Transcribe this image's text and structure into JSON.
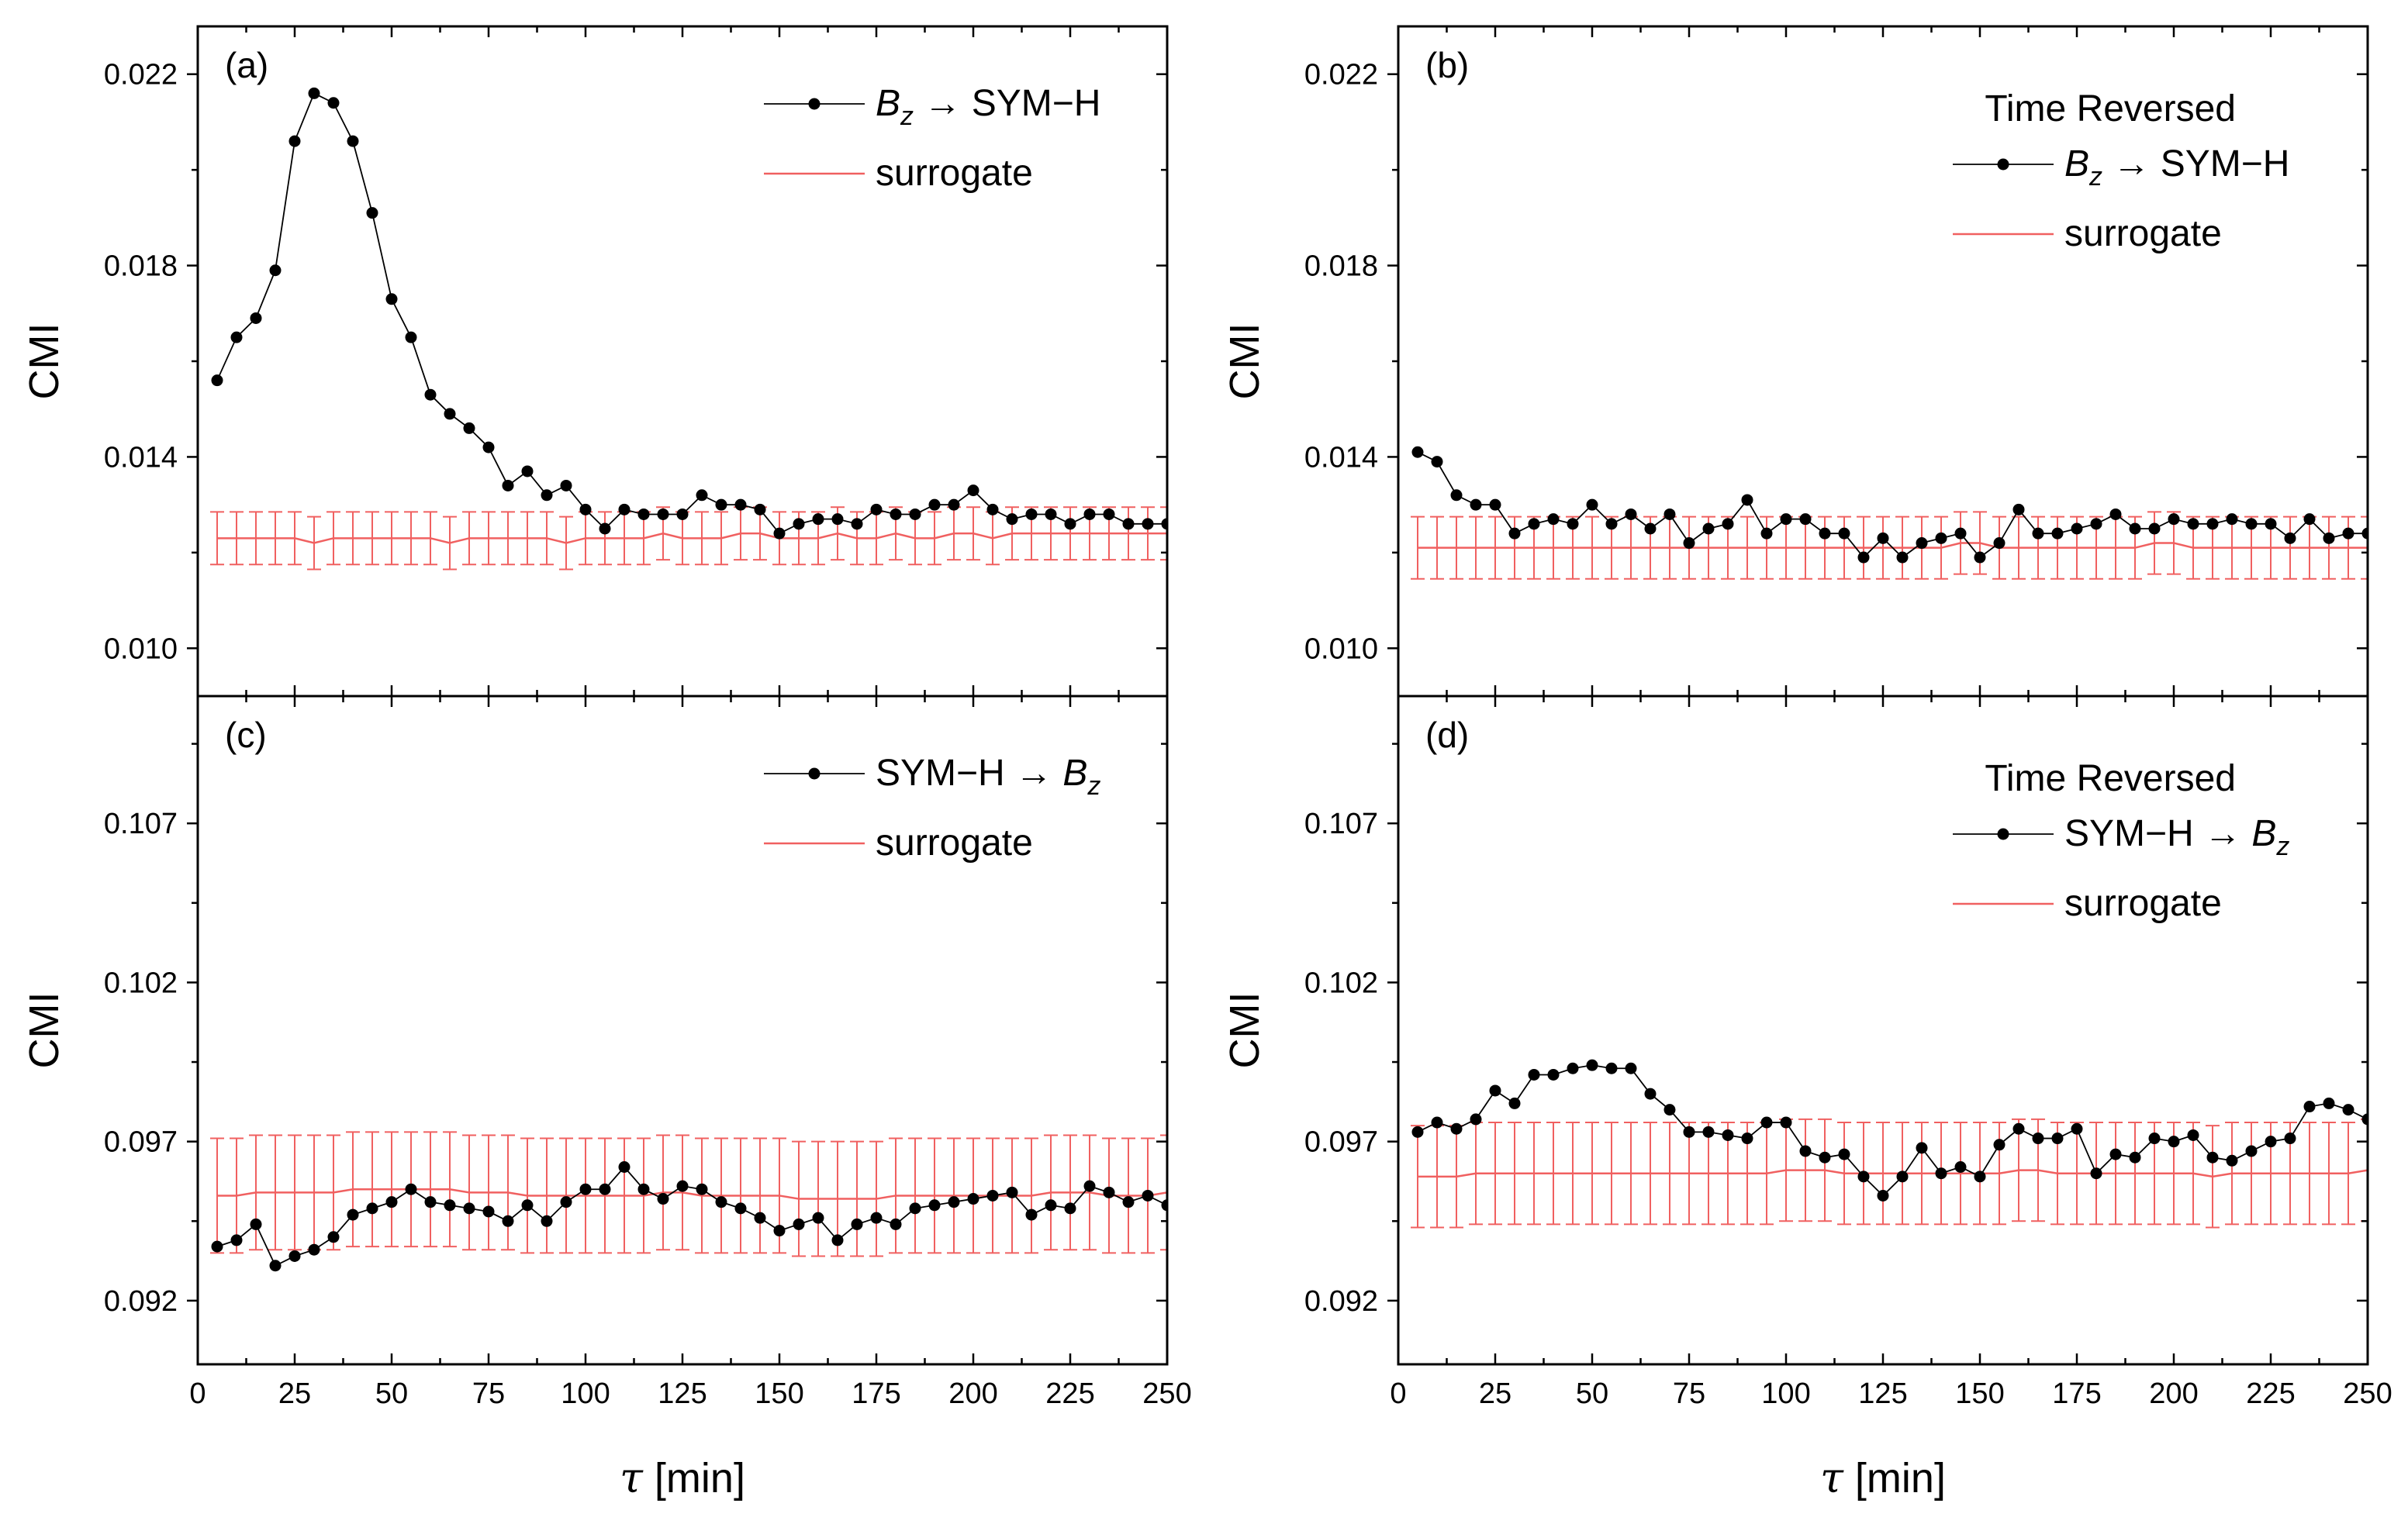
{
  "chart_data": [
    {
      "type": "line",
      "panel_label": "(a)",
      "ylabel": "CMI",
      "xlabel": "τ [min]",
      "xlim": [
        0,
        250
      ],
      "ylim": [
        0.009,
        0.023
      ],
      "x_ticks": [
        "0",
        "25",
        "50",
        "75",
        "100",
        "125",
        "150",
        "175",
        "200",
        "225",
        "250"
      ],
      "y_ticks": [
        "0.010",
        "0.014",
        "0.018",
        "0.022"
      ],
      "legend": {
        "title": "",
        "entries": [
          "B_z → SYM−H",
          "surrogate"
        ],
        "position": "top-right"
      },
      "series": [
        {
          "name": "B_z → SYM−H",
          "color": "#000000",
          "marker": "circle",
          "x": [
            5,
            10,
            15,
            20,
            25,
            30,
            35,
            40,
            45,
            50,
            55,
            60,
            65,
            70,
            75,
            80,
            85,
            90,
            95,
            100,
            105,
            110,
            115,
            120,
            125,
            130,
            135,
            140,
            145,
            150,
            155,
            160,
            165,
            170,
            175,
            180,
            185,
            190,
            195,
            200,
            205,
            210,
            215,
            220,
            225,
            230,
            235,
            240,
            245,
            250
          ],
          "y": [
            0.0156,
            0.0165,
            0.0169,
            0.0179,
            0.0206,
            0.0216,
            0.0214,
            0.0206,
            0.0191,
            0.0173,
            0.0165,
            0.0153,
            0.0149,
            0.0146,
            0.0142,
            0.0134,
            0.0137,
            0.0132,
            0.0134,
            0.0129,
            0.0125,
            0.0129,
            0.0128,
            0.0128,
            0.0128,
            0.0132,
            0.013,
            0.013,
            0.0129,
            0.0124,
            0.0126,
            0.0127,
            0.0127,
            0.0126,
            0.0129,
            0.0128,
            0.0128,
            0.013,
            0.013,
            0.0133,
            0.0129,
            0.0127,
            0.0128,
            0.0128,
            0.0126,
            0.0128,
            0.0128,
            0.0126,
            0.0126,
            0.0126
          ]
        },
        {
          "name": "surrogate",
          "color": "#f06060",
          "marker": "none",
          "x": [
            5,
            10,
            15,
            20,
            25,
            30,
            35,
            40,
            45,
            50,
            55,
            60,
            65,
            70,
            75,
            80,
            85,
            90,
            95,
            100,
            105,
            110,
            115,
            120,
            125,
            130,
            135,
            140,
            145,
            150,
            155,
            160,
            165,
            170,
            175,
            180,
            185,
            190,
            195,
            200,
            205,
            210,
            215,
            220,
            225,
            230,
            235,
            240,
            245,
            250
          ],
          "y": [
            0.0123,
            0.0123,
            0.0123,
            0.0123,
            0.0123,
            0.0122,
            0.0123,
            0.0123,
            0.0123,
            0.0123,
            0.0123,
            0.0123,
            0.0122,
            0.0123,
            0.0123,
            0.0123,
            0.0123,
            0.0123,
            0.0122,
            0.0123,
            0.0123,
            0.0123,
            0.0123,
            0.0124,
            0.0123,
            0.0123,
            0.0123,
            0.0124,
            0.0124,
            0.0123,
            0.0123,
            0.0123,
            0.0124,
            0.0123,
            0.0123,
            0.0124,
            0.0123,
            0.0123,
            0.0124,
            0.0124,
            0.0123,
            0.0124,
            0.0124,
            0.0124,
            0.0124,
            0.0124,
            0.0124,
            0.0124,
            0.0124,
            0.0124
          ],
          "error": 0.00055
        }
      ]
    },
    {
      "type": "line",
      "panel_label": "(b)",
      "ylabel": "CMI",
      "xlabel": "τ [min]",
      "xlim": [
        0,
        250
      ],
      "ylim": [
        0.009,
        0.023
      ],
      "x_ticks": [
        "0",
        "25",
        "50",
        "75",
        "100",
        "125",
        "150",
        "175",
        "200",
        "225",
        "250"
      ],
      "y_ticks": [
        "0.010",
        "0.014",
        "0.018",
        "0.022"
      ],
      "legend": {
        "title": "Time Reversed",
        "entries": [
          "B_z → SYM−H",
          "surrogate"
        ],
        "position": "top-right"
      },
      "series": [
        {
          "name": "B_z → SYM−H",
          "color": "#000000",
          "marker": "circle",
          "x": [
            5,
            10,
            15,
            20,
            25,
            30,
            35,
            40,
            45,
            50,
            55,
            60,
            65,
            70,
            75,
            80,
            85,
            90,
            95,
            100,
            105,
            110,
            115,
            120,
            125,
            130,
            135,
            140,
            145,
            150,
            155,
            160,
            165,
            170,
            175,
            180,
            185,
            190,
            195,
            200,
            205,
            210,
            215,
            220,
            225,
            230,
            235,
            240,
            245,
            250
          ],
          "y": [
            0.0141,
            0.0139,
            0.0132,
            0.013,
            0.013,
            0.0124,
            0.0126,
            0.0127,
            0.0126,
            0.013,
            0.0126,
            0.0128,
            0.0125,
            0.0128,
            0.0122,
            0.0125,
            0.0126,
            0.0131,
            0.0124,
            0.0127,
            0.0127,
            0.0124,
            0.0124,
            0.0119,
            0.0123,
            0.0119,
            0.0122,
            0.0123,
            0.0124,
            0.0119,
            0.0122,
            0.0129,
            0.0124,
            0.0124,
            0.0125,
            0.0126,
            0.0128,
            0.0125,
            0.0125,
            0.0127,
            0.0126,
            0.0126,
            0.0127,
            0.0126,
            0.0126,
            0.0123,
            0.0127,
            0.0123,
            0.0124,
            0.0124
          ],
          "y_hidden": false
        },
        {
          "name": "surrogate",
          "color": "#f06060",
          "marker": "none",
          "x": [
            5,
            10,
            15,
            20,
            25,
            30,
            35,
            40,
            45,
            50,
            55,
            60,
            65,
            70,
            75,
            80,
            85,
            90,
            95,
            100,
            105,
            110,
            115,
            120,
            125,
            130,
            135,
            140,
            145,
            150,
            155,
            160,
            165,
            170,
            175,
            180,
            185,
            190,
            195,
            200,
            205,
            210,
            215,
            220,
            225,
            230,
            235,
            240,
            245,
            250
          ],
          "y": [
            0.0121,
            0.0121,
            0.0121,
            0.0121,
            0.0121,
            0.0121,
            0.0121,
            0.0121,
            0.0121,
            0.0121,
            0.0121,
            0.0121,
            0.0121,
            0.0121,
            0.0121,
            0.0121,
            0.0121,
            0.0121,
            0.0121,
            0.0121,
            0.0121,
            0.0121,
            0.0121,
            0.0121,
            0.0121,
            0.0121,
            0.0121,
            0.0121,
            0.0122,
            0.0122,
            0.0121,
            0.0121,
            0.0121,
            0.0121,
            0.0121,
            0.0121,
            0.0121,
            0.0121,
            0.0122,
            0.0122,
            0.0121,
            0.0121,
            0.0121,
            0.0121,
            0.0121,
            0.0121,
            0.0121,
            0.0121,
            0.0121,
            0.0121
          ],
          "error": 0.00065
        }
      ]
    },
    {
      "type": "line",
      "panel_label": "(c)",
      "ylabel": "CMI",
      "xlabel": "τ [min]",
      "xlim": [
        0,
        250
      ],
      "ylim": [
        0.09,
        0.111
      ],
      "x_ticks": [
        "0",
        "25",
        "50",
        "75",
        "100",
        "125",
        "150",
        "175",
        "200",
        "225",
        "250"
      ],
      "y_ticks": [
        "0.092",
        "0.097",
        "0.102",
        "0.107"
      ],
      "legend": {
        "title": "",
        "entries": [
          "SYM−H → B_z",
          "surrogate"
        ],
        "position": "top-right"
      },
      "series": [
        {
          "name": "SYM−H → B_z",
          "color": "#000000",
          "marker": "circle",
          "x": [
            5,
            10,
            15,
            20,
            25,
            30,
            35,
            40,
            45,
            50,
            55,
            60,
            65,
            70,
            75,
            80,
            85,
            90,
            95,
            100,
            105,
            110,
            115,
            120,
            125,
            130,
            135,
            140,
            145,
            150,
            155,
            160,
            165,
            170,
            175,
            180,
            185,
            190,
            195,
            200,
            205,
            210,
            215,
            220,
            225,
            230,
            235,
            240,
            245,
            250
          ],
          "y": [
            0.0937,
            0.0939,
            0.0944,
            0.0931,
            0.0934,
            0.0936,
            0.094,
            0.0947,
            0.0949,
            0.0951,
            0.0955,
            0.0951,
            0.095,
            0.0949,
            0.0948,
            0.0945,
            0.095,
            0.0945,
            0.0951,
            0.0955,
            0.0955,
            0.0962,
            0.0955,
            0.0952,
            0.0956,
            0.0955,
            0.0951,
            0.0949,
            0.0946,
            0.0942,
            0.0944,
            0.0946,
            0.0939,
            0.0944,
            0.0946,
            0.0944,
            0.0949,
            0.095,
            0.0951,
            0.0952,
            0.0953,
            0.0954,
            0.0947,
            0.095,
            0.0949,
            0.0956,
            0.0954,
            0.0951,
            0.0953,
            0.095
          ]
        },
        {
          "name": "surrogate",
          "color": "#f06060",
          "marker": "none",
          "x": [
            5,
            10,
            15,
            20,
            25,
            30,
            35,
            40,
            45,
            50,
            55,
            60,
            65,
            70,
            75,
            80,
            85,
            90,
            95,
            100,
            105,
            110,
            115,
            120,
            125,
            130,
            135,
            140,
            145,
            150,
            155,
            160,
            165,
            170,
            175,
            180,
            185,
            190,
            195,
            200,
            205,
            210,
            215,
            220,
            225,
            230,
            235,
            240,
            245,
            250
          ],
          "y": [
            0.0953,
            0.0953,
            0.0954,
            0.0954,
            0.0954,
            0.0954,
            0.0954,
            0.0955,
            0.0955,
            0.0955,
            0.0955,
            0.0955,
            0.0955,
            0.0954,
            0.0954,
            0.0954,
            0.0953,
            0.0953,
            0.0953,
            0.0953,
            0.0953,
            0.0953,
            0.0953,
            0.0954,
            0.0954,
            0.0953,
            0.0953,
            0.0953,
            0.0953,
            0.0953,
            0.0952,
            0.0952,
            0.0952,
            0.0952,
            0.0952,
            0.0953,
            0.0953,
            0.0953,
            0.0953,
            0.0953,
            0.0953,
            0.0953,
            0.0953,
            0.0954,
            0.0954,
            0.0954,
            0.0953,
            0.0953,
            0.0953,
            0.0954
          ],
          "error": 0.0018
        }
      ]
    },
    {
      "type": "line",
      "panel_label": "(d)",
      "ylabel": "CMI",
      "xlabel": "τ [min]",
      "xlim": [
        0,
        250
      ],
      "ylim": [
        0.09,
        0.111
      ],
      "x_ticks": [
        "0",
        "25",
        "50",
        "75",
        "100",
        "125",
        "150",
        "175",
        "200",
        "225",
        "250"
      ],
      "y_ticks": [
        "0.092",
        "0.097",
        "0.102",
        "0.107"
      ],
      "legend": {
        "title": "Time Reversed",
        "entries": [
          "SYM−H → B_z",
          "surrogate"
        ],
        "position": "top-right"
      },
      "series": [
        {
          "name": "SYM−H → B_z",
          "color": "#000000",
          "marker": "circle",
          "x": [
            5,
            10,
            15,
            20,
            25,
            30,
            35,
            40,
            45,
            50,
            55,
            60,
            65,
            70,
            75,
            80,
            85,
            90,
            95,
            100,
            105,
            110,
            115,
            120,
            125,
            130,
            135,
            140,
            145,
            150,
            155,
            160,
            165,
            170,
            175,
            180,
            185,
            190,
            195,
            200,
            205,
            210,
            215,
            220,
            225,
            230,
            235,
            240,
            245,
            250
          ],
          "y": [
            0.0973,
            0.0976,
            0.0974,
            0.0977,
            0.0986,
            0.0982,
            0.0991,
            0.0991,
            0.0993,
            0.0994,
            0.0993,
            0.0993,
            0.0985,
            0.098,
            0.0973,
            0.0973,
            0.0972,
            0.0971,
            0.0976,
            0.0976,
            0.0967,
            0.0965,
            0.0966,
            0.0959,
            0.0953,
            0.0959,
            0.0968,
            0.096,
            0.0962,
            0.0959,
            0.0969,
            0.0974,
            0.0971,
            0.0971,
            0.0974,
            0.096,
            0.0966,
            0.0965,
            0.0971,
            0.097,
            0.0972,
            0.0965,
            0.0964,
            0.0967,
            0.097,
            0.0971,
            0.0981,
            0.0982,
            0.098,
            0.0977
          ]
        },
        {
          "name": "surrogate",
          "color": "#f06060",
          "marker": "none",
          "x": [
            5,
            10,
            15,
            20,
            25,
            30,
            35,
            40,
            45,
            50,
            55,
            60,
            65,
            70,
            75,
            80,
            85,
            90,
            95,
            100,
            105,
            110,
            115,
            120,
            125,
            130,
            135,
            140,
            145,
            150,
            155,
            160,
            165,
            170,
            175,
            180,
            185,
            190,
            195,
            200,
            205,
            210,
            215,
            220,
            225,
            230,
            235,
            240,
            245,
            250
          ],
          "y": [
            0.0959,
            0.0959,
            0.0959,
            0.096,
            0.096,
            0.096,
            0.096,
            0.096,
            0.096,
            0.096,
            0.096,
            0.096,
            0.096,
            0.096,
            0.096,
            0.096,
            0.096,
            0.096,
            0.096,
            0.0961,
            0.0961,
            0.0961,
            0.096,
            0.096,
            0.096,
            0.096,
            0.096,
            0.096,
            0.096,
            0.096,
            0.096,
            0.0961,
            0.0961,
            0.096,
            0.096,
            0.096,
            0.096,
            0.096,
            0.096,
            0.096,
            0.096,
            0.0959,
            0.096,
            0.096,
            0.096,
            0.096,
            0.096,
            0.096,
            0.096,
            0.0961
          ],
          "error": 0.0016
        }
      ]
    }
  ]
}
